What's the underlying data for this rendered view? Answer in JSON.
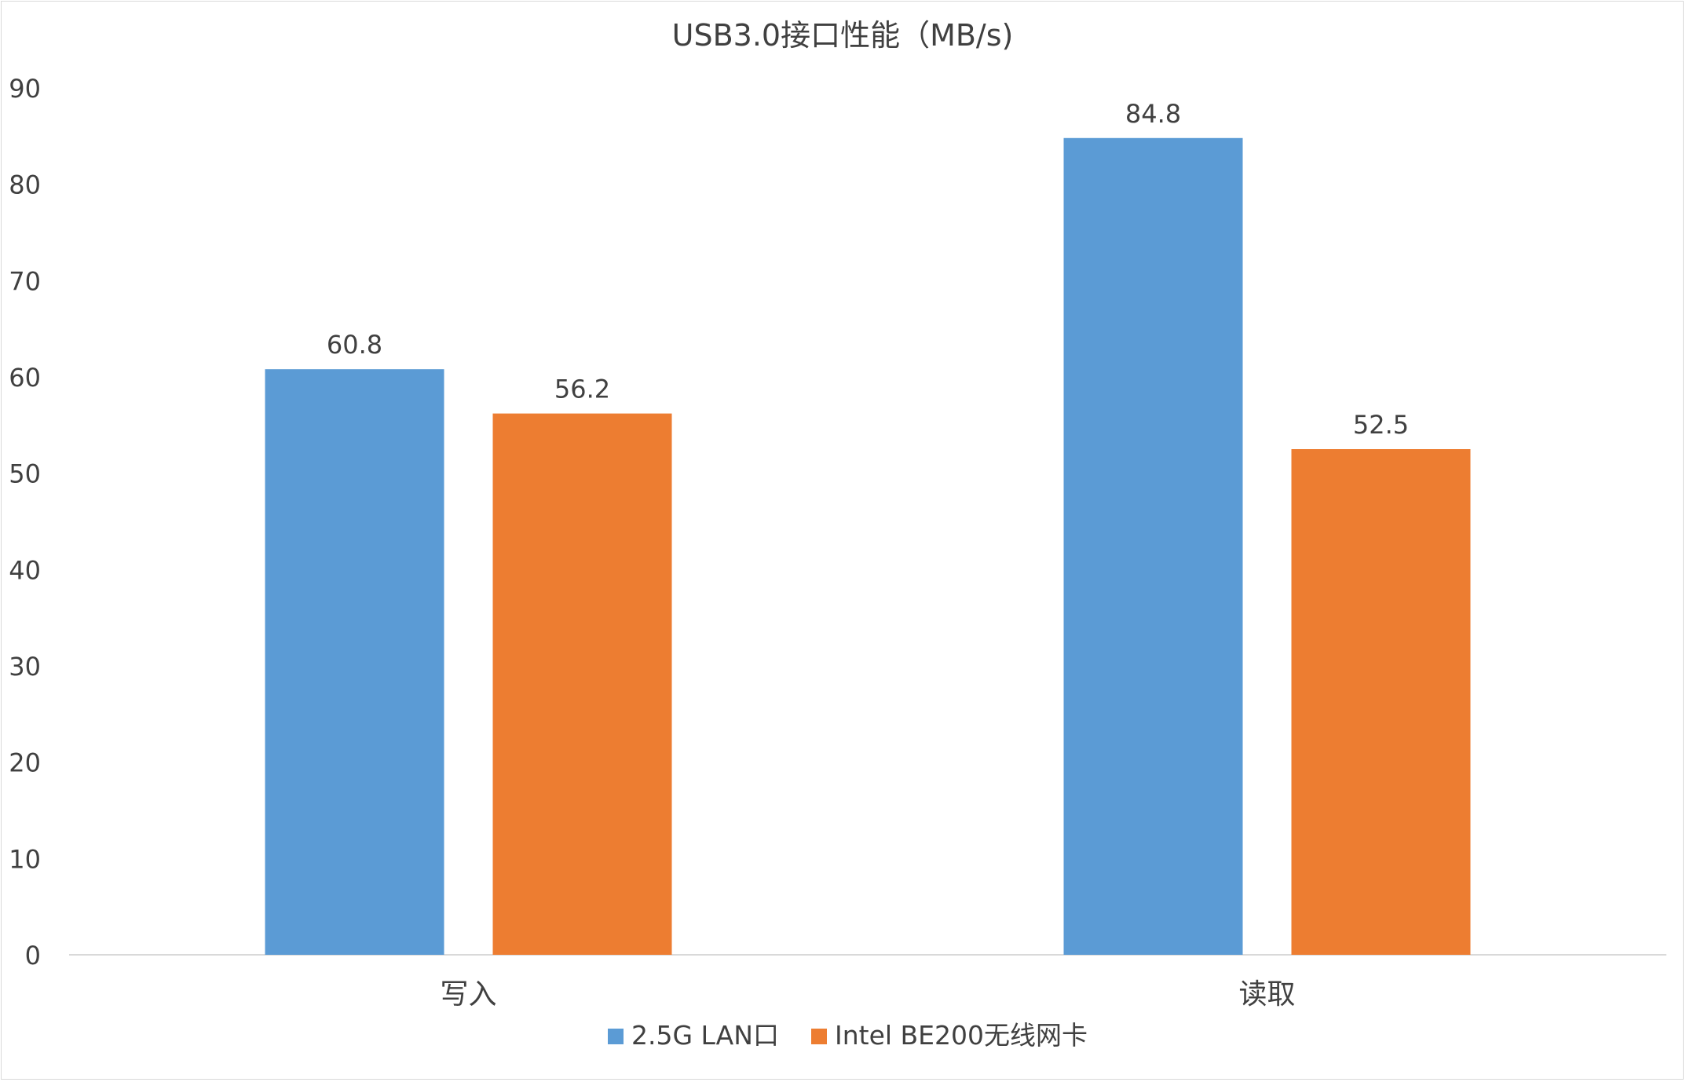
{
  "chart_data": {
    "type": "bar",
    "title": "USB3.0接口性能（MB/s)",
    "categories": [
      "写入",
      "读取"
    ],
    "series": [
      {
        "name": "2.5G LAN口",
        "values": [
          60.8,
          84.8
        ],
        "color": "#5B9BD5"
      },
      {
        "name": "Intel BE200无线网卡",
        "values": [
          56.2,
          52.5
        ],
        "color": "#ED7D31"
      }
    ],
    "data_labels": [
      [
        "60.8",
        "84.8"
      ],
      [
        "56.2",
        "52.5"
      ]
    ],
    "y_ticks": [
      "0",
      "10",
      "20",
      "30",
      "40",
      "50",
      "60",
      "70",
      "80",
      "90"
    ],
    "ylim": [
      0,
      90
    ],
    "grid": false,
    "legend_position": "bottom",
    "axis_color": "#d9d9d9",
    "text_color": "#404040"
  }
}
